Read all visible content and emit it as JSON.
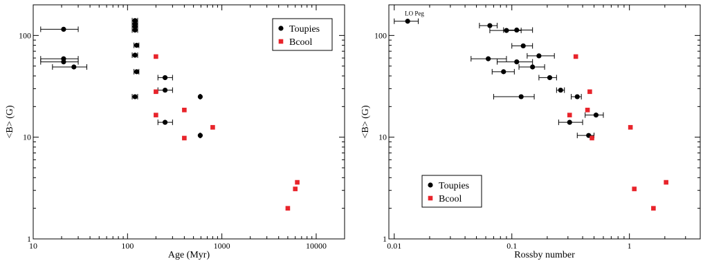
{
  "chart_data": [
    {
      "type": "scatter",
      "xscale": "log",
      "yscale": "log",
      "xlim": [
        10,
        20000
      ],
      "ylim": [
        1,
        200
      ],
      "xlabel": "Age (Myr)",
      "ylabel": "<B> (G)",
      "x_ticks": [
        {
          "v": 10,
          "label": "10"
        },
        {
          "v": 100,
          "label": "100"
        },
        {
          "v": 1000,
          "label": "1000"
        },
        {
          "v": 10000,
          "label": "10000"
        }
      ],
      "y_ticks": [
        {
          "v": 1,
          "label": "1"
        },
        {
          "v": 10,
          "label": "10"
        },
        {
          "v": 100,
          "label": "100"
        }
      ],
      "legend": {
        "position": "top-right",
        "entries": [
          {
            "name": "Toupies",
            "marker": "circle",
            "color": "#000000"
          },
          {
            "name": "Bcool",
            "marker": "square",
            "color": "#e8242b"
          }
        ]
      },
      "series": [
        {
          "name": "Toupies",
          "marker": "circle",
          "color": "#000000",
          "points": [
            {
              "x": 21,
              "y": 115,
              "xlo": 12,
              "xhi": 30
            },
            {
              "x": 21,
              "y": 59,
              "xlo": 12,
              "xhi": 30
            },
            {
              "x": 21,
              "y": 55,
              "xlo": 12,
              "xhi": 30
            },
            {
              "x": 27,
              "y": 49,
              "xlo": 16,
              "xhi": 37
            },
            {
              "x": 120,
              "y": 140,
              "xlo": 112,
              "xhi": 128
            },
            {
              "x": 120,
              "y": 130,
              "xlo": 112,
              "xhi": 128
            },
            {
              "x": 120,
              "y": 122,
              "xlo": 112,
              "xhi": 128
            },
            {
              "x": 120,
              "y": 113,
              "xlo": 112,
              "xhi": 128
            },
            {
              "x": 125,
              "y": 80,
              "xlo": 117,
              "xhi": 132
            },
            {
              "x": 120,
              "y": 64,
              "xlo": 112,
              "xhi": 128
            },
            {
              "x": 125,
              "y": 44,
              "xlo": 117,
              "xhi": 132
            },
            {
              "x": 120,
              "y": 25,
              "xlo": 112,
              "xhi": 128
            },
            {
              "x": 250,
              "y": 38.5,
              "xlo": 210,
              "xhi": 300
            },
            {
              "x": 250,
              "y": 29,
              "xlo": 210,
              "xhi": 300
            },
            {
              "x": 250,
              "y": 14,
              "xlo": 210,
              "xhi": 300
            },
            {
              "x": 590,
              "y": 25,
              "xlo": 585,
              "xhi": 595
            },
            {
              "x": 590,
              "y": 10.4,
              "xlo": 585,
              "xhi": 595
            }
          ]
        },
        {
          "name": "Bcool",
          "marker": "square",
          "color": "#e8242b",
          "points": [
            {
              "x": 200,
              "y": 62
            },
            {
              "x": 200,
              "y": 28
            },
            {
              "x": 200,
              "y": 16.5
            },
            {
              "x": 400,
              "y": 18.5
            },
            {
              "x": 400,
              "y": 9.8
            },
            {
              "x": 800,
              "y": 12.5
            },
            {
              "x": 5000,
              "y": 2.0
            },
            {
              "x": 6000,
              "y": 3.1
            },
            {
              "x": 6300,
              "y": 3.6
            }
          ]
        }
      ],
      "annotations": []
    },
    {
      "type": "scatter",
      "xscale": "log",
      "yscale": "log",
      "xlim": [
        0.009,
        4
      ],
      "ylim": [
        1,
        200
      ],
      "xlabel": "Rossby number",
      "ylabel": "<B> (G)",
      "x_ticks": [
        {
          "v": 0.01,
          "label": "0.01"
        },
        {
          "v": 0.1,
          "label": "0.1"
        },
        {
          "v": 1,
          "label": "1"
        }
      ],
      "y_ticks": [
        {
          "v": 1,
          "label": "1"
        },
        {
          "v": 10,
          "label": "10"
        },
        {
          "v": 100,
          "label": "100"
        }
      ],
      "legend": {
        "position": "bottom-left",
        "entries": [
          {
            "name": "Toupies",
            "marker": "circle",
            "color": "#000000"
          },
          {
            "name": "Bcool",
            "marker": "square",
            "color": "#e8242b"
          }
        ]
      },
      "series": [
        {
          "name": "Toupies",
          "marker": "circle",
          "color": "#000000",
          "points": [
            {
              "x": 0.013,
              "y": 138,
              "xlo": 0.01,
              "xhi": 0.016
            },
            {
              "x": 0.065,
              "y": 125,
              "xlo": 0.053,
              "xhi": 0.075
            },
            {
              "x": 0.11,
              "y": 113,
              "xlo": 0.085,
              "xhi": 0.15
            },
            {
              "x": 0.09,
              "y": 112,
              "xlo": 0.065,
              "xhi": 0.12
            },
            {
              "x": 0.125,
              "y": 79,
              "xlo": 0.1,
              "xhi": 0.15
            },
            {
              "x": 0.17,
              "y": 63,
              "xlo": 0.135,
              "xhi": 0.23
            },
            {
              "x": 0.063,
              "y": 59,
              "xlo": 0.045,
              "xhi": 0.09
            },
            {
              "x": 0.11,
              "y": 55,
              "xlo": 0.075,
              "xhi": 0.15
            },
            {
              "x": 0.15,
              "y": 49,
              "xlo": 0.115,
              "xhi": 0.19
            },
            {
              "x": 0.085,
              "y": 44,
              "xlo": 0.068,
              "xhi": 0.105
            },
            {
              "x": 0.21,
              "y": 38.5,
              "xlo": 0.17,
              "xhi": 0.24
            },
            {
              "x": 0.26,
              "y": 29,
              "xlo": 0.24,
              "xhi": 0.28
            },
            {
              "x": 0.36,
              "y": 25,
              "xlo": 0.32,
              "xhi": 0.39
            },
            {
              "x": 0.12,
              "y": 25,
              "xlo": 0.07,
              "xhi": 0.155
            },
            {
              "x": 0.52,
              "y": 16.5,
              "xlo": 0.42,
              "xhi": 0.6
            },
            {
              "x": 0.31,
              "y": 14,
              "xlo": 0.25,
              "xhi": 0.4
            },
            {
              "x": 0.45,
              "y": 10.4,
              "xlo": 0.36,
              "xhi": 0.5
            }
          ]
        },
        {
          "name": "Bcool",
          "marker": "square",
          "color": "#e8242b",
          "points": [
            {
              "x": 0.35,
              "y": 62
            },
            {
              "x": 0.46,
              "y": 28
            },
            {
              "x": 0.44,
              "y": 18.5
            },
            {
              "x": 0.31,
              "y": 16.5
            },
            {
              "x": 0.48,
              "y": 9.8
            },
            {
              "x": 1.02,
              "y": 12.5
            },
            {
              "x": 1.1,
              "y": 3.1
            },
            {
              "x": 1.6,
              "y": 2.0
            },
            {
              "x": 2.05,
              "y": 3.6
            }
          ]
        }
      ],
      "annotations": [
        {
          "text": "LO Peg",
          "x": 0.013,
          "y": 138
        }
      ]
    }
  ]
}
